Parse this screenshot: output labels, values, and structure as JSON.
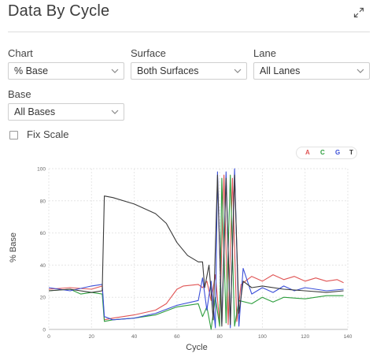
{
  "header": {
    "title": "Data By Cycle",
    "expand_icon": "expand-arrows-icon"
  },
  "filters": {
    "chart": {
      "label": "Chart",
      "value": "% Base"
    },
    "surface": {
      "label": "Surface",
      "value": "Both Surfaces"
    },
    "lane": {
      "label": "Lane",
      "value": "All Lanes"
    },
    "base": {
      "label": "Base",
      "value": "All Bases"
    },
    "dropdown_icon": "chevron-down-icon"
  },
  "fix_scale": {
    "label": "Fix Scale",
    "checked": false
  },
  "legend": [
    {
      "label": "A",
      "color": "#e05555"
    },
    {
      "label": "C",
      "color": "#2e9e3e"
    },
    {
      "label": "G",
      "color": "#3b4fd8"
    },
    {
      "label": "T",
      "color": "#333333"
    }
  ],
  "chart_data": {
    "type": "line",
    "xlabel": "Cycle",
    "ylabel": "% Base",
    "xlim": [
      0,
      140
    ],
    "ylim": [
      0,
      100
    ],
    "xticks": [
      0,
      20,
      40,
      60,
      80,
      100,
      120,
      140
    ],
    "yticks": [
      0,
      20,
      40,
      60,
      80,
      100
    ],
    "grid": true,
    "series": [
      {
        "name": "A",
        "color": "#e05555",
        "points": [
          [
            0,
            25
          ],
          [
            10,
            26
          ],
          [
            20,
            25
          ],
          [
            25,
            27
          ],
          [
            26,
            6
          ],
          [
            30,
            7
          ],
          [
            40,
            9
          ],
          [
            50,
            12
          ],
          [
            55,
            16
          ],
          [
            60,
            25
          ],
          [
            63,
            27
          ],
          [
            70,
            28
          ],
          [
            72,
            26
          ],
          [
            74,
            30
          ],
          [
            76,
            18
          ],
          [
            78,
            34
          ],
          [
            80,
            4
          ],
          [
            82,
            96
          ],
          [
            84,
            3
          ],
          [
            86,
            94
          ],
          [
            88,
            5
          ],
          [
            90,
            28
          ],
          [
            95,
            33
          ],
          [
            100,
            30
          ],
          [
            105,
            34
          ],
          [
            110,
            31
          ],
          [
            115,
            33
          ],
          [
            120,
            30
          ],
          [
            125,
            32
          ],
          [
            130,
            30
          ],
          [
            135,
            31
          ],
          [
            138,
            29
          ]
        ]
      },
      {
        "name": "C",
        "color": "#2e9e3e",
        "points": [
          [
            0,
            24
          ],
          [
            10,
            25
          ],
          [
            15,
            22
          ],
          [
            20,
            23
          ],
          [
            25,
            22
          ],
          [
            26,
            5
          ],
          [
            30,
            6
          ],
          [
            40,
            7
          ],
          [
            50,
            9
          ],
          [
            60,
            14
          ],
          [
            70,
            16
          ],
          [
            72,
            8
          ],
          [
            74,
            14
          ],
          [
            76,
            0
          ],
          [
            78,
            20
          ],
          [
            80,
            2
          ],
          [
            81,
            94
          ],
          [
            83,
            4
          ],
          [
            85,
            96
          ],
          [
            87,
            2
          ],
          [
            89,
            18
          ],
          [
            95,
            16
          ],
          [
            100,
            20
          ],
          [
            105,
            17
          ],
          [
            110,
            20
          ],
          [
            120,
            19
          ],
          [
            130,
            21
          ],
          [
            138,
            21
          ]
        ]
      },
      {
        "name": "G",
        "color": "#3b4fd8",
        "points": [
          [
            0,
            26
          ],
          [
            10,
            24
          ],
          [
            20,
            27
          ],
          [
            25,
            28
          ],
          [
            26,
            8
          ],
          [
            30,
            6
          ],
          [
            40,
            7
          ],
          [
            50,
            10
          ],
          [
            60,
            15
          ],
          [
            70,
            18
          ],
          [
            72,
            32
          ],
          [
            74,
            12
          ],
          [
            76,
            30
          ],
          [
            78,
            1
          ],
          [
            79,
            98
          ],
          [
            81,
            3
          ],
          [
            83,
            98
          ],
          [
            85,
            1
          ],
          [
            87,
            100
          ],
          [
            89,
            2
          ],
          [
            91,
            38
          ],
          [
            95,
            22
          ],
          [
            100,
            26
          ],
          [
            105,
            23
          ],
          [
            110,
            27
          ],
          [
            115,
            24
          ],
          [
            120,
            26
          ],
          [
            130,
            24
          ],
          [
            138,
            25
          ]
        ]
      },
      {
        "name": "T",
        "color": "#3a3a3a",
        "points": [
          [
            0,
            24
          ],
          [
            10,
            25
          ],
          [
            20,
            23
          ],
          [
            25,
            24
          ],
          [
            26,
            83
          ],
          [
            30,
            82
          ],
          [
            40,
            78
          ],
          [
            50,
            72
          ],
          [
            55,
            66
          ],
          [
            60,
            54
          ],
          [
            65,
            46
          ],
          [
            70,
            42
          ],
          [
            72,
            42
          ],
          [
            73,
            26
          ],
          [
            75,
            40
          ],
          [
            77,
            6
          ],
          [
            79,
            96
          ],
          [
            81,
            2
          ],
          [
            83,
            94
          ],
          [
            85,
            3
          ],
          [
            87,
            96
          ],
          [
            89,
            10
          ],
          [
            91,
            30
          ],
          [
            95,
            26
          ],
          [
            100,
            27
          ],
          [
            110,
            25
          ],
          [
            120,
            24
          ],
          [
            130,
            23
          ],
          [
            138,
            24
          ]
        ]
      }
    ]
  }
}
